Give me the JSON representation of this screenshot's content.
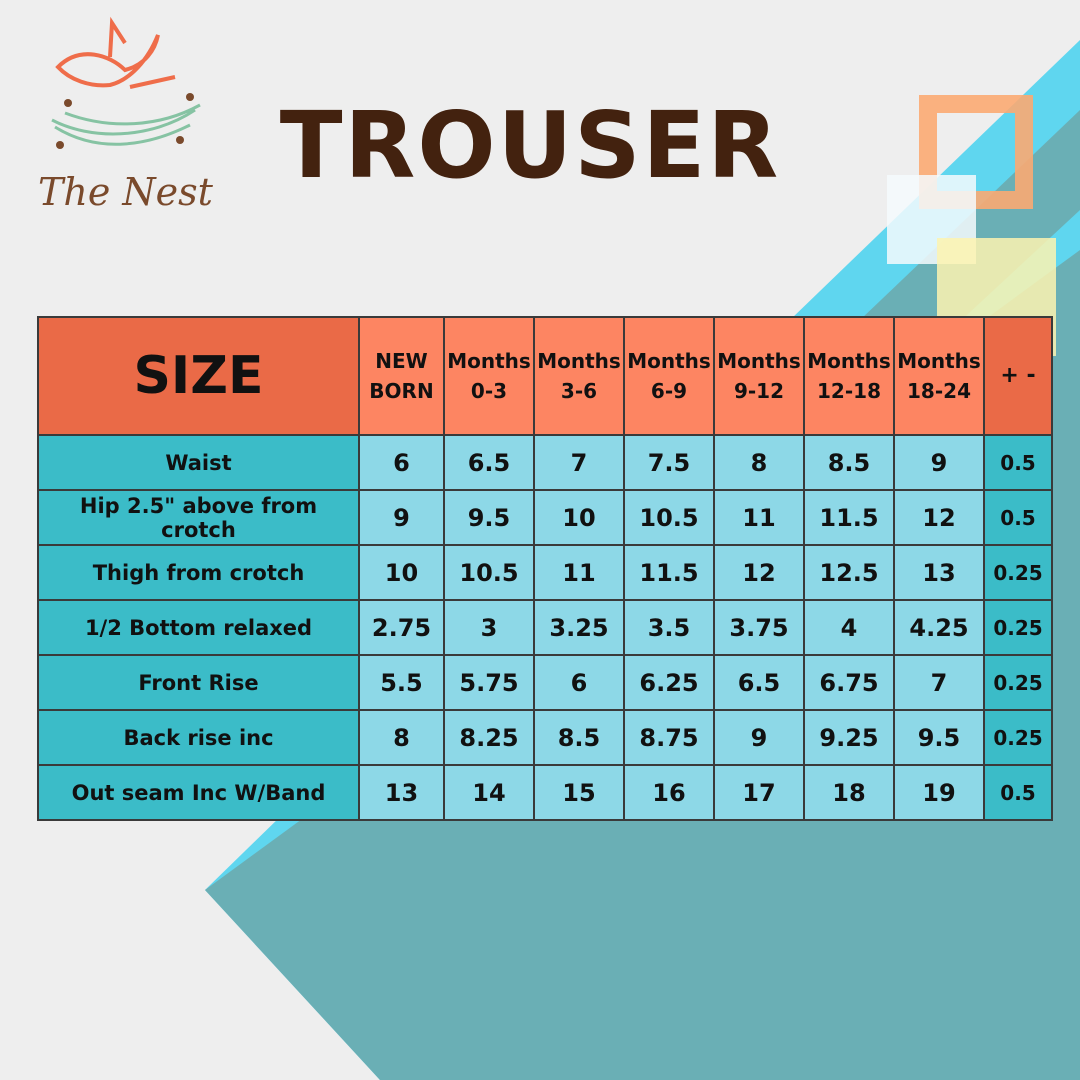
{
  "brand": {
    "logo_text": "The Nest"
  },
  "title": "TROUSER",
  "colors": {
    "header": "#fd8562",
    "header_dark": "#ea6a47",
    "label_col": "#3bbcc8",
    "cell": "#8dd8e7",
    "title": "#43220f"
  },
  "table": {
    "corner": "SIZE",
    "headers": [
      [
        "NEW",
        "BORN"
      ],
      [
        "Months",
        "0-3"
      ],
      [
        "Months",
        "3-6"
      ],
      [
        "Months",
        "6-9"
      ],
      [
        "Months",
        "9-12"
      ],
      [
        "Months",
        "12-18"
      ],
      [
        "Months",
        "18-24"
      ]
    ],
    "tolerance_header": "+ -",
    "rows": [
      {
        "label": "Waist",
        "values": [
          "6",
          "6.5",
          "7",
          "7.5",
          "8",
          "8.5",
          "9"
        ],
        "tol": "0.5"
      },
      {
        "label": "Hip 2.5\" above from crotch",
        "values": [
          "9",
          "9.5",
          "10",
          "10.5",
          "11",
          "11.5",
          "12"
        ],
        "tol": "0.5"
      },
      {
        "label": "Thigh  from crotch",
        "values": [
          "10",
          "10.5",
          "11",
          "11.5",
          "12",
          "12.5",
          "13"
        ],
        "tol": "0.25"
      },
      {
        "label": "1/2 Bottom relaxed",
        "values": [
          "2.75",
          "3",
          "3.25",
          "3.5",
          "3.75",
          "4",
          "4.25"
        ],
        "tol": "0.25"
      },
      {
        "label": "Front Rise",
        "values": [
          "5.5",
          "5.75",
          "6",
          "6.25",
          "6.5",
          "6.75",
          "7"
        ],
        "tol": "0.25"
      },
      {
        "label": "Back rise inc",
        "values": [
          "8",
          "8.25",
          "8.5",
          "8.75",
          "9",
          "9.25",
          "9.5"
        ],
        "tol": "0.25"
      },
      {
        "label": "Out seam Inc W/Band",
        "values": [
          "13",
          "14",
          "15",
          "16",
          "17",
          "18",
          "19"
        ],
        "tol": "0.5"
      }
    ]
  }
}
